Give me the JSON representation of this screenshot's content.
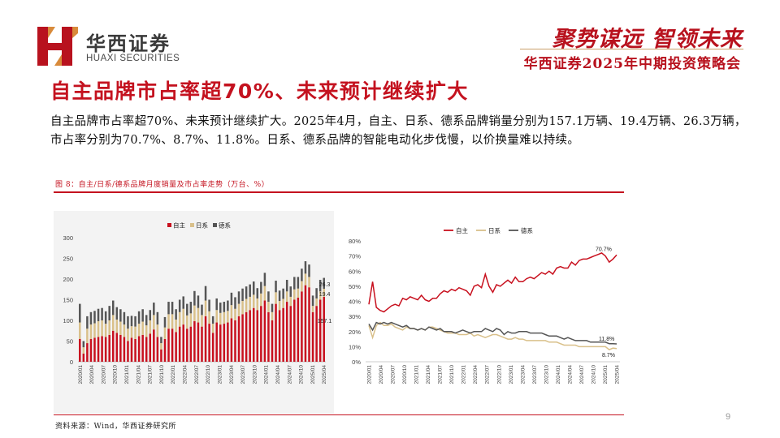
{
  "header": {
    "brand_cn": "华西证券",
    "brand_en": "HUAXI SECURITIES",
    "slogan": "聚势谋远 智领未来",
    "conference": "华西证券2025年中期投资策略会"
  },
  "title": "自主品牌市占率超70%、未来预计继续扩大",
  "body": "自主品牌市占率超70%、未来预计继续扩大。2025年4月，自主、日系、德系品牌销量分别为157.1万辆、19.4万辆、26.3万辆，市占率分别为70.7%、8.7%、11.8%。日系、德系品牌的智能电动化步伐慢，以价换量难以持续。",
  "figure": {
    "caption": "图 8：自主/日系/德系品牌月度销量及市占率走势（万台、%）",
    "source": "资料来源：Wind，华西证券研究所"
  },
  "page_number": "9",
  "colors": {
    "brand_red": "#c4121f",
    "zizhu": "#c8101e",
    "rixi": "#d9c08a",
    "dexi": "#555555"
  },
  "chart_data": [
    {
      "type": "bar",
      "stacked": true,
      "legend": [
        "自主",
        "日系",
        "德系"
      ],
      "legend_position": "top-right",
      "ylim": [
        0,
        300
      ],
      "yticks": [
        0,
        50,
        100,
        150,
        200,
        250,
        300
      ],
      "x_ticklabels": [
        "2020/01",
        "2020/04",
        "2020/07",
        "2020/10",
        "2021/01",
        "2021/04",
        "2021/07",
        "2021/10",
        "2022/01",
        "2022/04",
        "2022/07",
        "2022/10",
        "2023/01",
        "2023/04",
        "2023/07",
        "2023/10",
        "2024/01",
        "2024/04",
        "2024/07",
        "2024/10",
        "2025/01",
        "2025/04"
      ],
      "series": [
        {
          "name": "自主",
          "values": [
            55,
            20,
            45,
            55,
            58,
            60,
            62,
            60,
            65,
            75,
            70,
            65,
            60,
            50,
            58,
            55,
            62,
            65,
            60,
            68,
            78,
            60,
            30,
            55,
            80,
            80,
            72,
            85,
            90,
            80,
            85,
            98,
            95,
            85,
            110,
            92,
            70,
            95,
            90,
            92,
            95,
            105,
            100,
            110,
            115,
            120,
            125,
            130,
            125,
            135,
            148,
            120,
            100,
            140,
            125,
            130,
            145,
            135,
            150,
            155,
            170,
            185,
            180,
            120,
            135,
            150,
            157.1
          ]
        },
        {
          "name": "日系",
          "values": [
            40,
            15,
            35,
            35,
            35,
            38,
            38,
            32,
            35,
            38,
            32,
            32,
            30,
            30,
            28,
            30,
            30,
            32,
            28,
            32,
            35,
            30,
            15,
            28,
            35,
            35,
            30,
            35,
            38,
            32,
            32,
            38,
            35,
            28,
            38,
            30,
            22,
            30,
            28,
            28,
            28,
            32,
            28,
            30,
            32,
            32,
            32,
            32,
            28,
            30,
            35,
            25,
            20,
            28,
            22,
            22,
            25,
            22,
            25,
            22,
            25,
            28,
            25,
            15,
            18,
            20,
            19.4
          ]
        },
        {
          "name": "德系",
          "values": [
            45,
            15,
            30,
            30,
            30,
            30,
            30,
            30,
            35,
            35,
            30,
            30,
            30,
            30,
            25,
            25,
            30,
            30,
            25,
            25,
            30,
            30,
            15,
            25,
            30,
            30,
            25,
            30,
            30,
            28,
            28,
            35,
            30,
            25,
            35,
            28,
            18,
            28,
            25,
            25,
            25,
            30,
            28,
            30,
            30,
            30,
            30,
            32,
            25,
            28,
            32,
            25,
            20,
            28,
            25,
            25,
            28,
            25,
            30,
            28,
            30,
            30,
            30,
            25,
            25,
            28,
            26.3
          ]
        }
      ],
      "data_labels": [
        "26.3",
        "19.4",
        "157.1"
      ]
    },
    {
      "type": "line",
      "legend": [
        "自主",
        "日系",
        "德系"
      ],
      "legend_position": "top",
      "ylim": [
        0,
        80
      ],
      "yticks": [
        "0%",
        "10%",
        "20%",
        "30%",
        "40%",
        "50%",
        "60%",
        "70%",
        "80%"
      ],
      "x_ticklabels": [
        "2020/01",
        "2020/04",
        "2020/07",
        "2020/10",
        "2021/01",
        "2021/04",
        "2021/07",
        "2021/10",
        "2022/01",
        "2022/04",
        "2022/07",
        "2022/10",
        "2023/01",
        "2023/04",
        "2023/07",
        "2023/10",
        "2024/01",
        "2024/04",
        "2024/07",
        "2024/10",
        "2025/01",
        "2025/04"
      ],
      "series": [
        {
          "name": "自主",
          "values": [
            38,
            53,
            36,
            34,
            33,
            35,
            37,
            38,
            37,
            42,
            41,
            43,
            42,
            41,
            44,
            41,
            40,
            42,
            42,
            45,
            47,
            46,
            48,
            47,
            49,
            48,
            47,
            44,
            50,
            51,
            49,
            58,
            50,
            46,
            51,
            50,
            52,
            54,
            52,
            56,
            53,
            53,
            55,
            56,
            55,
            57,
            59,
            58,
            60,
            58,
            62,
            63,
            62,
            62,
            66,
            64,
            67,
            68,
            68,
            69,
            70,
            71,
            72,
            70,
            66,
            68,
            70.7
          ]
        },
        {
          "name": "日系",
          "values": [
            24,
            16,
            24,
            26,
            24,
            24,
            25,
            23,
            22,
            21,
            23,
            22,
            22,
            21,
            22,
            21,
            23,
            23,
            22,
            21,
            20,
            19,
            19,
            19,
            18,
            18,
            18,
            19,
            17,
            18,
            17,
            16,
            17,
            18,
            18,
            17,
            16,
            15,
            15,
            16,
            15,
            15,
            14,
            14,
            14,
            14,
            14,
            14,
            13,
            13,
            13,
            12,
            11,
            11,
            11,
            11,
            10,
            10,
            10,
            10,
            10,
            10,
            10,
            10,
            8,
            9,
            8.7
          ]
        },
        {
          "name": "德系",
          "values": [
            25,
            21,
            26,
            25,
            26,
            25,
            26,
            25,
            24,
            23,
            24,
            22,
            22,
            21,
            22,
            21,
            23,
            22,
            21,
            22,
            20,
            20,
            20,
            19,
            20,
            21,
            20,
            19,
            20,
            20,
            20,
            22,
            21,
            20,
            22,
            21,
            18,
            20,
            19,
            19,
            20,
            20,
            20,
            19,
            19,
            19,
            19,
            18,
            17,
            17,
            17,
            16,
            15,
            16,
            15,
            14,
            14,
            14,
            14,
            13,
            13,
            13,
            13,
            13,
            12,
            12,
            11.8
          ]
        }
      ],
      "data_labels": [
        "70.7%",
        "11.8%",
        "8.7%"
      ]
    }
  ]
}
